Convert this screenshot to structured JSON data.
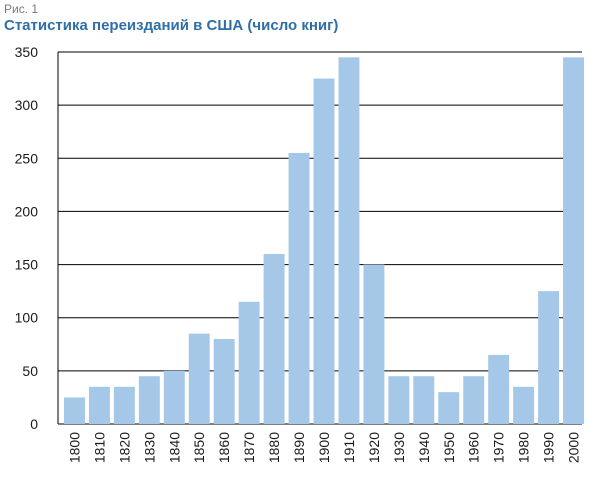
{
  "figure": {
    "label": "Рис. 1",
    "title": "Статистика переизданий в США (число книг)"
  },
  "chart_data": {
    "type": "bar",
    "title": "Статистика переизданий в США (число книг)",
    "xlabel": "",
    "ylabel": "",
    "ylim": [
      0,
      350
    ],
    "yticks": [
      0,
      50,
      100,
      150,
      200,
      250,
      300,
      350
    ],
    "grid": true,
    "bar_color": "#a6c8e8",
    "categories": [
      "1800",
      "1810",
      "1820",
      "1830",
      "1840",
      "1850",
      "1860",
      "1870",
      "1880",
      "1890",
      "1900",
      "1910",
      "1920",
      "1930",
      "1940",
      "1950",
      "1960",
      "1970",
      "1980",
      "1990",
      "2000"
    ],
    "values": [
      25,
      35,
      35,
      45,
      50,
      85,
      80,
      115,
      160,
      255,
      325,
      345,
      150,
      45,
      45,
      30,
      45,
      65,
      35,
      125,
      345
    ]
  }
}
